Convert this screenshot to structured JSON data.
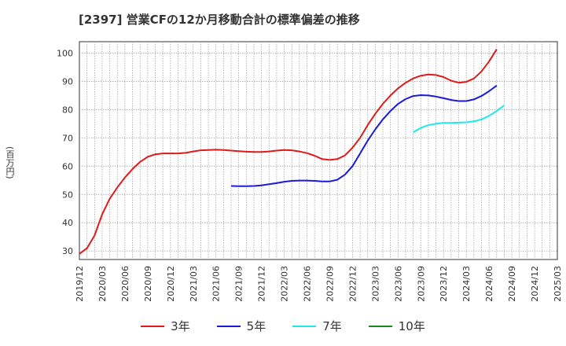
{
  "title": "[2397]  営業CFの12か月移動合計の標準偏差の推移",
  "ylabel_text": "(百万円)",
  "chart_data": {
    "type": "line",
    "title": "[2397]  営業CFの12か月移動合計の標準偏差の推移",
    "ylabel": "(百万円)",
    "xlabel": "",
    "ylim": [
      27,
      104
    ],
    "xlim": [
      "2019-12",
      "2025-03"
    ],
    "grid": true,
    "legend_position": "bottom",
    "y_ticks": [
      30,
      40,
      50,
      60,
      70,
      80,
      90,
      100
    ],
    "x_ticks": [
      "2019/12",
      "2020/03",
      "2020/06",
      "2020/09",
      "2020/12",
      "2021/03",
      "2021/06",
      "2021/09",
      "2021/12",
      "2022/03",
      "2022/06",
      "2022/09",
      "2022/12",
      "2023/03",
      "2023/06",
      "2023/09",
      "2023/12",
      "2024/03",
      "2024/06",
      "2024/09",
      "2024/12",
      "2025/03"
    ],
    "series": [
      {
        "name": "3年",
        "color": "#e01a1a",
        "points": [
          [
            "2019-12",
            29
          ],
          [
            "2020-01",
            31
          ],
          [
            "2020-02",
            35.5
          ],
          [
            "2020-03",
            43
          ],
          [
            "2020-04",
            48.5
          ],
          [
            "2020-05",
            52.5
          ],
          [
            "2020-06",
            56
          ],
          [
            "2020-07",
            59
          ],
          [
            "2020-08",
            61.5
          ],
          [
            "2020-09",
            63.3
          ],
          [
            "2020-10",
            64.2
          ],
          [
            "2020-11",
            64.5
          ],
          [
            "2020-12",
            64.5
          ],
          [
            "2021-01",
            64.5
          ],
          [
            "2021-02",
            64.7
          ],
          [
            "2021-03",
            65.2
          ],
          [
            "2021-04",
            65.6
          ],
          [
            "2021-05",
            65.7
          ],
          [
            "2021-06",
            65.8
          ],
          [
            "2021-07",
            65.7
          ],
          [
            "2021-08",
            65.5
          ],
          [
            "2021-09",
            65.3
          ],
          [
            "2021-10",
            65.1
          ],
          [
            "2021-11",
            65
          ],
          [
            "2021-12",
            65
          ],
          [
            "2022-01",
            65.2
          ],
          [
            "2022-02",
            65.5
          ],
          [
            "2022-03",
            65.7
          ],
          [
            "2022-04",
            65.6
          ],
          [
            "2022-05",
            65.2
          ],
          [
            "2022-06",
            64.6
          ],
          [
            "2022-07",
            63.7
          ],
          [
            "2022-08",
            62.5
          ],
          [
            "2022-09",
            62.2
          ],
          [
            "2022-10",
            62.5
          ],
          [
            "2022-11",
            63.8
          ],
          [
            "2022-12",
            66.5
          ],
          [
            "2023-01",
            70
          ],
          [
            "2023-02",
            74.5
          ],
          [
            "2023-03",
            78.5
          ],
          [
            "2023-04",
            82
          ],
          [
            "2023-05",
            85
          ],
          [
            "2023-06",
            87.5
          ],
          [
            "2023-07",
            89.5
          ],
          [
            "2023-08",
            91
          ],
          [
            "2023-09",
            92
          ],
          [
            "2023-10",
            92.4
          ],
          [
            "2023-11",
            92.2
          ],
          [
            "2023-12",
            91.5
          ],
          [
            "2024-01",
            90.2
          ],
          [
            "2024-02",
            89.5
          ],
          [
            "2024-03",
            89.8
          ],
          [
            "2024-04",
            91
          ],
          [
            "2024-05",
            93.5
          ],
          [
            "2024-06",
            97
          ],
          [
            "2024-07",
            101.3
          ]
        ]
      },
      {
        "name": "5年",
        "color": "#1a1adb",
        "points": [
          [
            "2021-08",
            53
          ],
          [
            "2021-09",
            52.9
          ],
          [
            "2021-10",
            52.9
          ],
          [
            "2021-11",
            53
          ],
          [
            "2021-12",
            53.2
          ],
          [
            "2022-01",
            53.6
          ],
          [
            "2022-02",
            54
          ],
          [
            "2022-03",
            54.5
          ],
          [
            "2022-04",
            54.8
          ],
          [
            "2022-05",
            54.9
          ],
          [
            "2022-06",
            54.9
          ],
          [
            "2022-07",
            54.8
          ],
          [
            "2022-08",
            54.6
          ],
          [
            "2022-09",
            54.6
          ],
          [
            "2022-10",
            55.2
          ],
          [
            "2022-11",
            57
          ],
          [
            "2022-12",
            60
          ],
          [
            "2023-01",
            64.5
          ],
          [
            "2023-02",
            69
          ],
          [
            "2023-03",
            73
          ],
          [
            "2023-04",
            76.5
          ],
          [
            "2023-05",
            79.5
          ],
          [
            "2023-06",
            82
          ],
          [
            "2023-07",
            83.7
          ],
          [
            "2023-08",
            84.8
          ],
          [
            "2023-09",
            85.1
          ],
          [
            "2023-10",
            85
          ],
          [
            "2023-11",
            84.6
          ],
          [
            "2023-12",
            84
          ],
          [
            "2024-01",
            83.4
          ],
          [
            "2024-02",
            83
          ],
          [
            "2024-03",
            83
          ],
          [
            "2024-04",
            83.6
          ],
          [
            "2024-05",
            84.8
          ],
          [
            "2024-06",
            86.5
          ],
          [
            "2024-07",
            88.5
          ]
        ]
      },
      {
        "name": "7年",
        "color": "#1fe8e8",
        "points": [
          [
            "2023-08",
            72
          ],
          [
            "2023-09",
            73.5
          ],
          [
            "2023-10",
            74.5
          ],
          [
            "2023-11",
            75
          ],
          [
            "2023-12",
            75.3
          ],
          [
            "2024-01",
            75.3
          ],
          [
            "2024-02",
            75.4
          ],
          [
            "2024-03",
            75.5
          ],
          [
            "2024-04",
            75.8
          ],
          [
            "2024-05",
            76.5
          ],
          [
            "2024-06",
            77.8
          ],
          [
            "2024-07",
            79.5
          ],
          [
            "2024-08",
            81.5
          ]
        ]
      },
      {
        "name": "10年",
        "color": "#1a8a1a",
        "points": []
      }
    ]
  }
}
